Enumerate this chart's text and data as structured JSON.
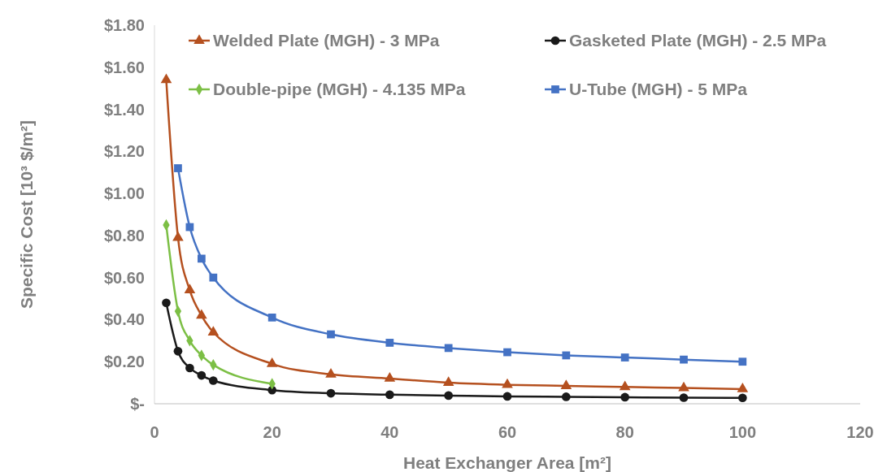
{
  "chart_data": {
    "type": "line",
    "xlabel": "Heat Exchanger Area [m²]",
    "ylabel": "Specific Cost [10³ $/m²]",
    "xlim": [
      0,
      120
    ],
    "xticks": [
      0,
      20,
      40,
      60,
      80,
      100,
      120
    ],
    "ylim": [
      0,
      1.8
    ],
    "yticks": [
      {
        "value": 0,
        "label": "$-"
      },
      {
        "value": 0.2,
        "label": "$0.20"
      },
      {
        "value": 0.4,
        "label": "$0.40"
      },
      {
        "value": 0.6,
        "label": "$0.60"
      },
      {
        "value": 0.8,
        "label": "$0.80"
      },
      {
        "value": 1.0,
        "label": "$1.00"
      },
      {
        "value": 1.2,
        "label": "$1.20"
      },
      {
        "value": 1.4,
        "label": "$1.40"
      },
      {
        "value": 1.6,
        "label": "$1.60"
      },
      {
        "value": 1.8,
        "label": "$1.80"
      }
    ],
    "grid": false,
    "legend": "top",
    "series": [
      {
        "name": "Welded Plate (MGH) - 3 MPa",
        "color": "#b5501f",
        "marker": "triangle",
        "x": [
          2,
          4,
          6,
          8,
          10,
          20,
          30,
          40,
          50,
          60,
          70,
          80,
          90,
          100
        ],
        "values": [
          1.54,
          0.79,
          0.54,
          0.42,
          0.34,
          0.19,
          0.14,
          0.12,
          0.1,
          0.09,
          0.085,
          0.08,
          0.075,
          0.07
        ]
      },
      {
        "name": "Gasketed Plate (MGH) - 2.5 MPa",
        "color": "#1a1a1a",
        "marker": "circle",
        "x": [
          2,
          4,
          6,
          8,
          10,
          20,
          30,
          40,
          50,
          60,
          70,
          80,
          90,
          100
        ],
        "values": [
          0.48,
          0.25,
          0.17,
          0.135,
          0.11,
          0.065,
          0.05,
          0.043,
          0.039,
          0.035,
          0.033,
          0.031,
          0.029,
          0.028
        ]
      },
      {
        "name": "Double-pipe (MGH) - 4.135 MPa",
        "color": "#7cbf45",
        "marker": "diamond",
        "x": [
          2,
          4,
          6,
          8,
          10,
          20
        ],
        "values": [
          0.85,
          0.44,
          0.3,
          0.23,
          0.185,
          0.095
        ]
      },
      {
        "name": "U-Tube (MGH) - 5 MPa",
        "color": "#4472c4",
        "marker": "square",
        "x": [
          4,
          6,
          8,
          10,
          20,
          30,
          40,
          50,
          60,
          70,
          80,
          90,
          100
        ],
        "values": [
          1.12,
          0.84,
          0.69,
          0.6,
          0.41,
          0.33,
          0.29,
          0.265,
          0.245,
          0.23,
          0.22,
          0.21,
          0.2
        ]
      }
    ]
  }
}
